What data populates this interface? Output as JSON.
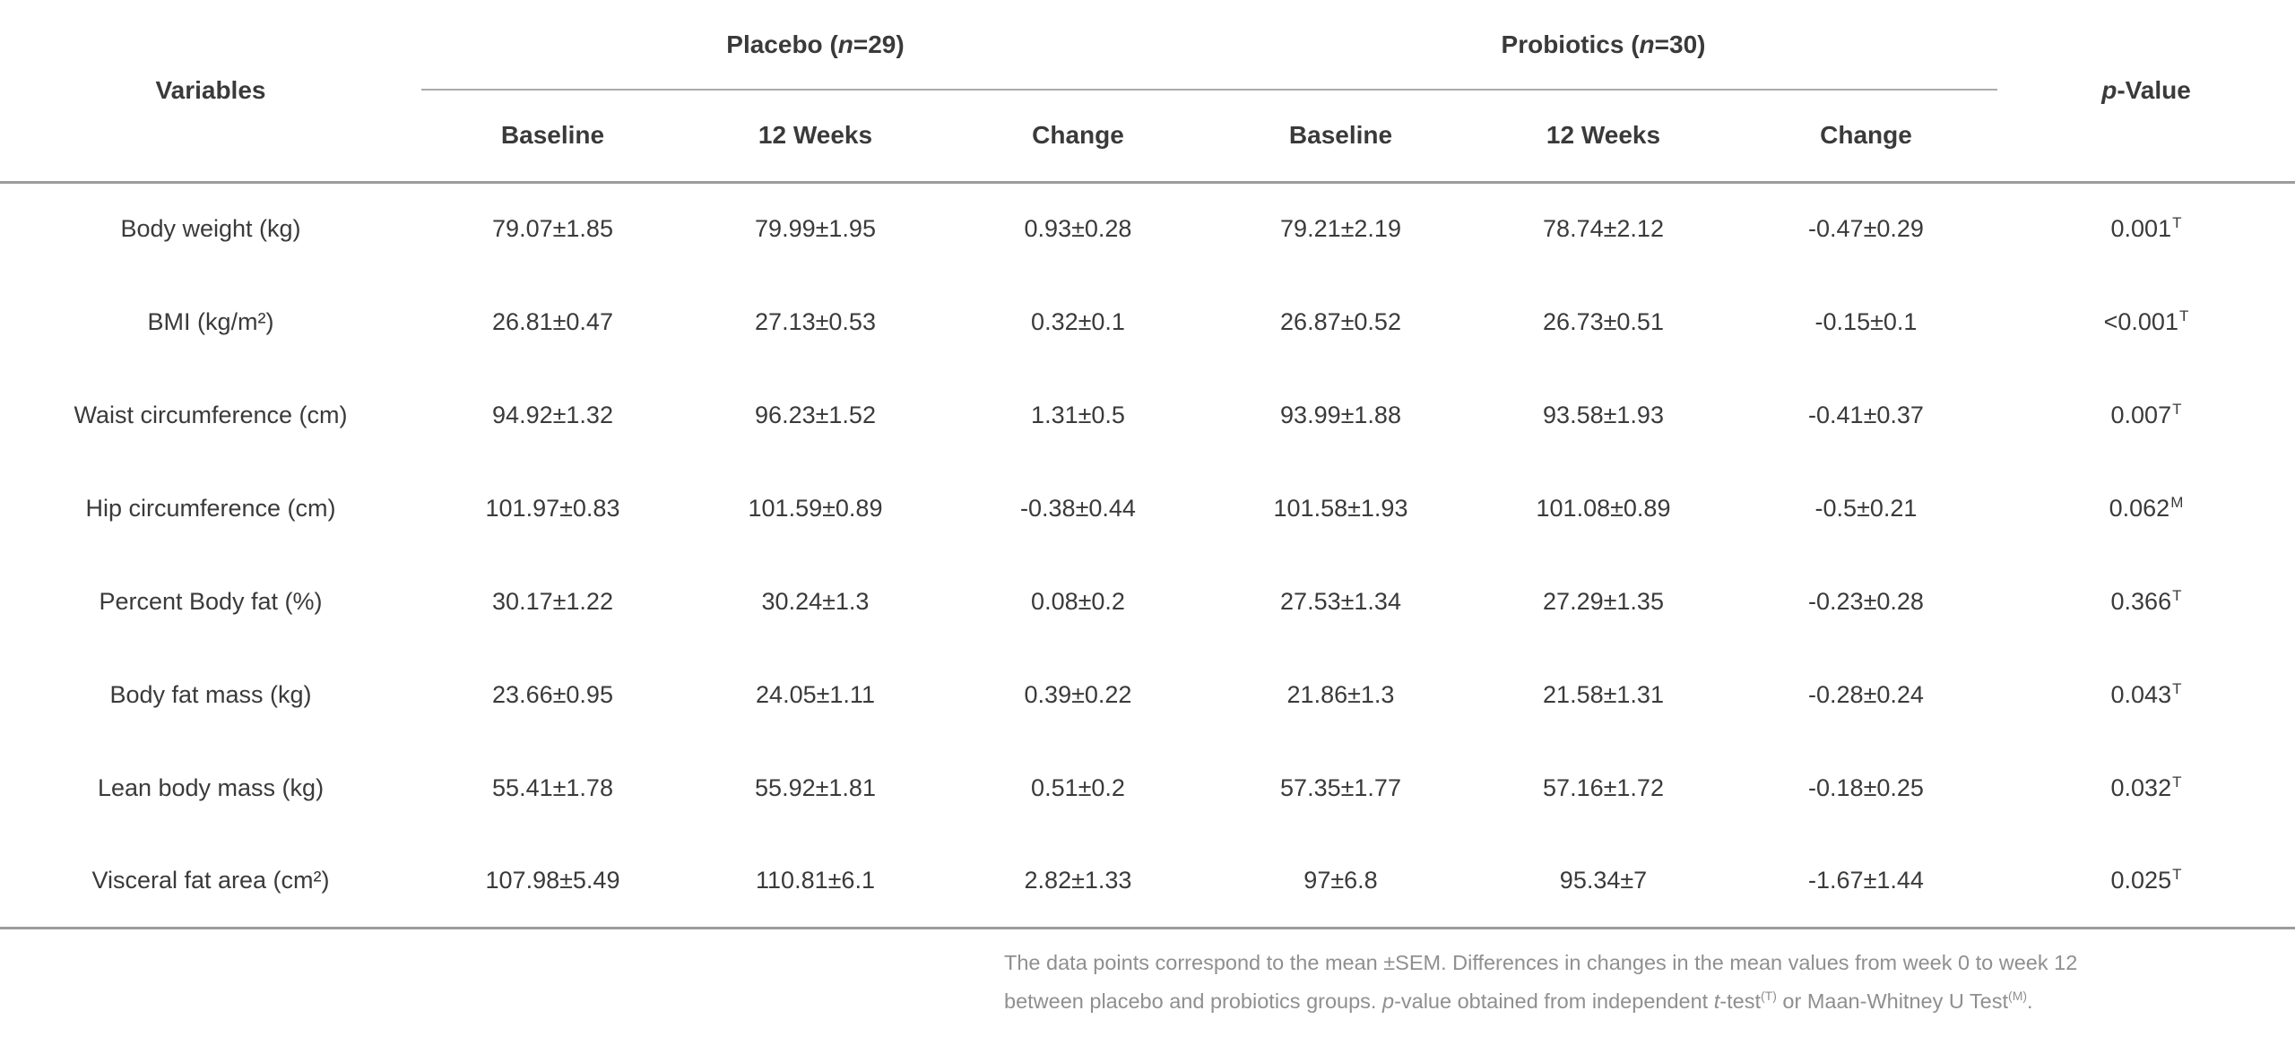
{
  "page": {
    "background": "#ffffff",
    "text_color": "#3a3a3a",
    "rule_color_light": "#ababab",
    "rule_color_dark": "#9c9c9c",
    "footnote_color": "#8f8f8f"
  },
  "header": {
    "variables": "Variables",
    "groups": [
      {
        "prefix": "Placebo (",
        "n": "n",
        "suffix": "=29)"
      },
      {
        "prefix": "Probiotics (",
        "n": "n",
        "suffix": "=30)"
      }
    ],
    "subheaders": [
      "Baseline",
      "12 Weeks",
      "Change",
      "Baseline",
      "12 Weeks",
      "Change"
    ],
    "p_value": {
      "p": "p",
      "suffix": "-Value"
    }
  },
  "rows": [
    {
      "variable": "Body weight (kg)",
      "values": [
        "79.07±1.85",
        "79.99±1.95",
        "0.93±0.28",
        "79.21±2.19",
        "78.74±2.12",
        "-0.47±0.29"
      ],
      "p": "0.001",
      "p_sup": "T"
    },
    {
      "variable": "BMI (kg/m²)",
      "values": [
        "26.81±0.47",
        "27.13±0.53",
        "0.32±0.1",
        "26.87±0.52",
        "26.73±0.51",
        "-0.15±0.1"
      ],
      "p": "<0.001",
      "p_sup": "T"
    },
    {
      "variable": "Waist circumference (cm)",
      "values": [
        "94.92±1.32",
        "96.23±1.52",
        "1.31±0.5",
        "93.99±1.88",
        "93.58±1.93",
        "-0.41±0.37"
      ],
      "p": "0.007",
      "p_sup": "T"
    },
    {
      "variable": "Hip circumference (cm)",
      "values": [
        "101.97±0.83",
        "101.59±0.89",
        "-0.38±0.44",
        "101.58±1.93",
        "101.08±0.89",
        "-0.5±0.21"
      ],
      "p": "0.062",
      "p_sup": "M"
    },
    {
      "variable": "Percent Body fat (%)",
      "values": [
        "30.17±1.22",
        "30.24±1.3",
        "0.08±0.2",
        "27.53±1.34",
        "27.29±1.35",
        "-0.23±0.28"
      ],
      "p": "0.366",
      "p_sup": "T"
    },
    {
      "variable": "Body fat mass (kg)",
      "values": [
        "23.66±0.95",
        "24.05±1.11",
        "0.39±0.22",
        "21.86±1.3",
        "21.58±1.31",
        "-0.28±0.24"
      ],
      "p": "0.043",
      "p_sup": "T"
    },
    {
      "variable": "Lean body mass (kg)",
      "values": [
        "55.41±1.78",
        "55.92±1.81",
        "0.51±0.2",
        "57.35±1.77",
        "57.16±1.72",
        "-0.18±0.25"
      ],
      "p": "0.032",
      "p_sup": "T"
    },
    {
      "variable": "Visceral fat area (cm²)",
      "values": [
        "107.98±5.49",
        "110.81±6.1",
        "2.82±1.33",
        "97±6.8",
        "95.34±7",
        "-1.67±1.44"
      ],
      "p": "0.025",
      "p_sup": "T"
    }
  ],
  "footnote": {
    "line1": "The data points correspond to the mean ±SEM. Differences in changes in the mean values from week 0 to week 12",
    "line2": {
      "part1": "between placebo and probiotics groups. ",
      "p": "p",
      "part2": "-value obtained from independent ",
      "t": "t",
      "part3": "-test",
      "sup1": "(T)",
      "part4": " or Maan-Whitney U Test",
      "sup2": "(M)",
      "part5": "."
    }
  }
}
